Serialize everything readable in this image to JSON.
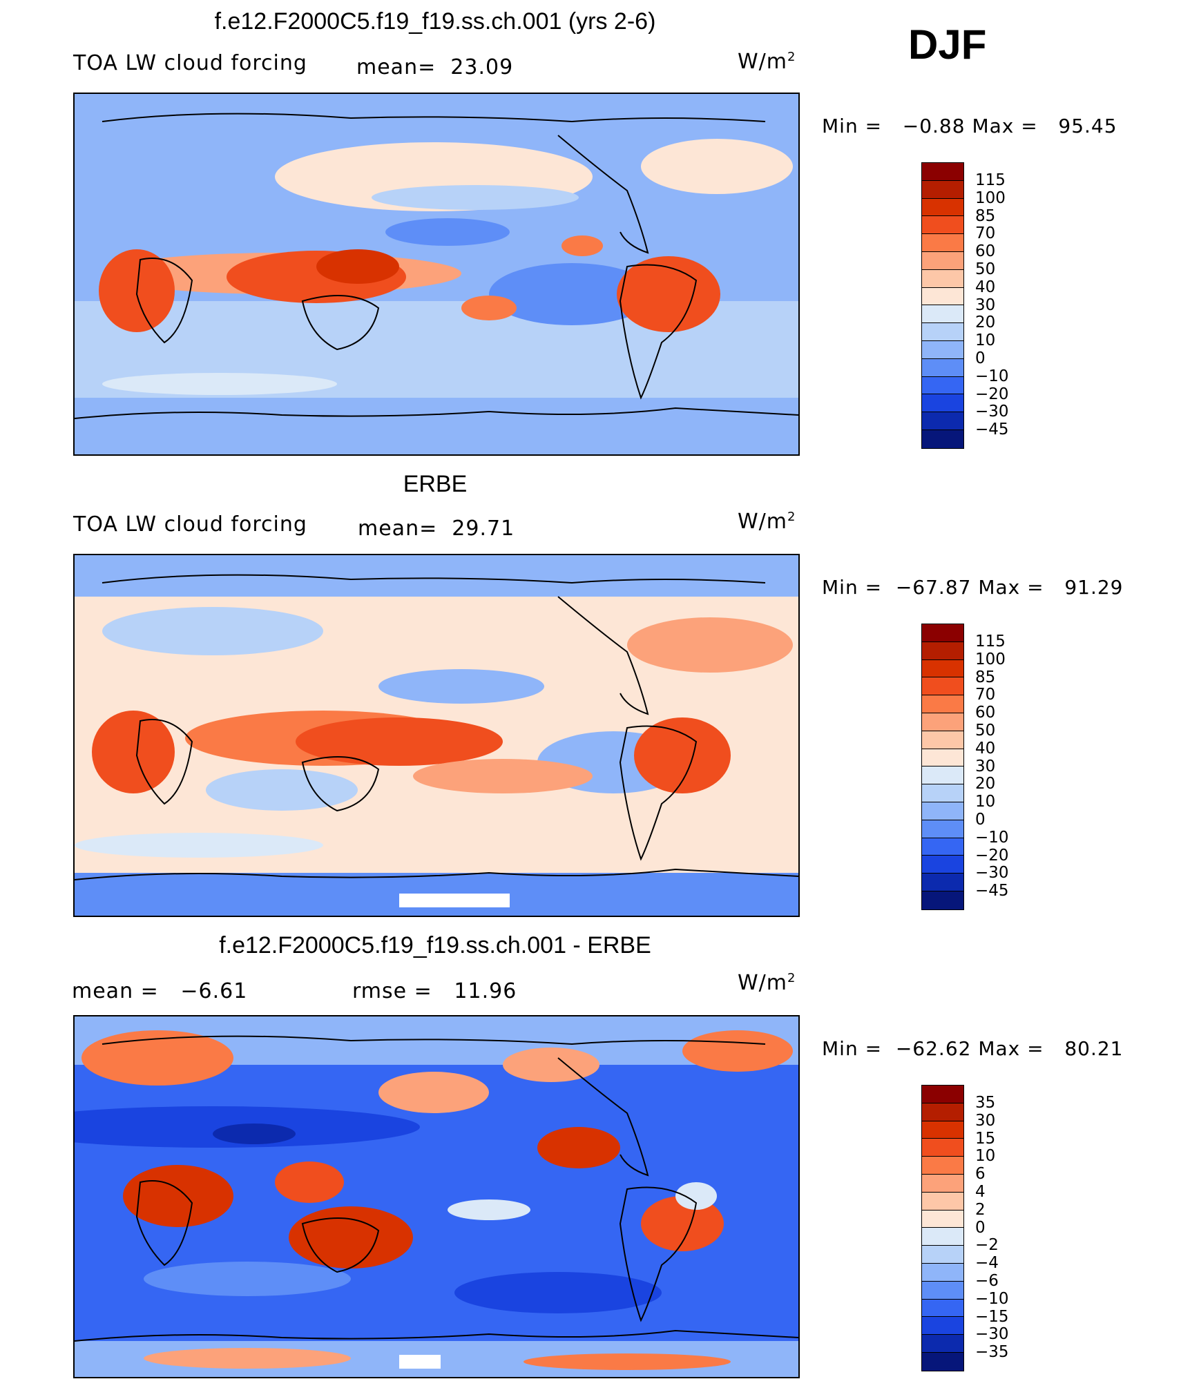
{
  "season": "DJF",
  "units_base": "W/m",
  "units_exp": "2",
  "panels": [
    {
      "title": "f.e12.F2000C5.f19_f19.ss.ch.001 (yrs 2-6)",
      "left_label": "TOA LW cloud forcing",
      "stat_label": "mean=  23.09",
      "minmax": "Min =   −0.88 Max =   95.45",
      "colorbar": {
        "labels": [
          "115",
          "100",
          "85",
          "70",
          "60",
          "50",
          "40",
          "30",
          "20",
          "10",
          "0",
          "−10",
          "−20",
          "−30",
          "−45"
        ],
        "colors": [
          "#8b0000",
          "#b41e00",
          "#d83200",
          "#f04e1e",
          "#fa7a46",
          "#fca27a",
          "#fdc7a8",
          "#fde6d6",
          "#dbe9f8",
          "#b7d2f8",
          "#8fb5f9",
          "#5e8ef7",
          "#3566f3",
          "#1a44e0",
          "#0c2aae",
          "#06167a"
        ]
      }
    },
    {
      "title": "ERBE",
      "left_label": "TOA LW cloud forcing",
      "stat_label": "mean=  29.71",
      "minmax": "Min =  −67.87 Max =   91.29",
      "colorbar": {
        "labels": [
          "115",
          "100",
          "85",
          "70",
          "60",
          "50",
          "40",
          "30",
          "20",
          "10",
          "0",
          "−10",
          "−20",
          "−30",
          "−45"
        ],
        "colors": [
          "#8b0000",
          "#b41e00",
          "#d83200",
          "#f04e1e",
          "#fa7a46",
          "#fca27a",
          "#fdc7a8",
          "#fde6d6",
          "#dbe9f8",
          "#b7d2f8",
          "#8fb5f9",
          "#5e8ef7",
          "#3566f3",
          "#1a44e0",
          "#0c2aae",
          "#06167a"
        ]
      }
    },
    {
      "title": "f.e12.F2000C5.f19_f19.ss.ch.001 - ERBE",
      "left_label": "mean =   −6.61",
      "stat_label": "rmse =   11.96",
      "minmax": "Min =  −62.62 Max =   80.21",
      "colorbar": {
        "labels": [
          "35",
          "30",
          "15",
          "10",
          "6",
          "4",
          "2",
          "0",
          "−2",
          "−4",
          "−6",
          "−10",
          "−15",
          "−30",
          "−35"
        ],
        "colors": [
          "#8b0000",
          "#b41e00",
          "#d83200",
          "#f04e1e",
          "#fa7a46",
          "#fca27a",
          "#fdc7a8",
          "#fde6d6",
          "#dbe9f8",
          "#b7d2f8",
          "#8fb5f9",
          "#5e8ef7",
          "#3566f3",
          "#1a44e0",
          "#0c2aae",
          "#06167a"
        ]
      }
    }
  ]
}
